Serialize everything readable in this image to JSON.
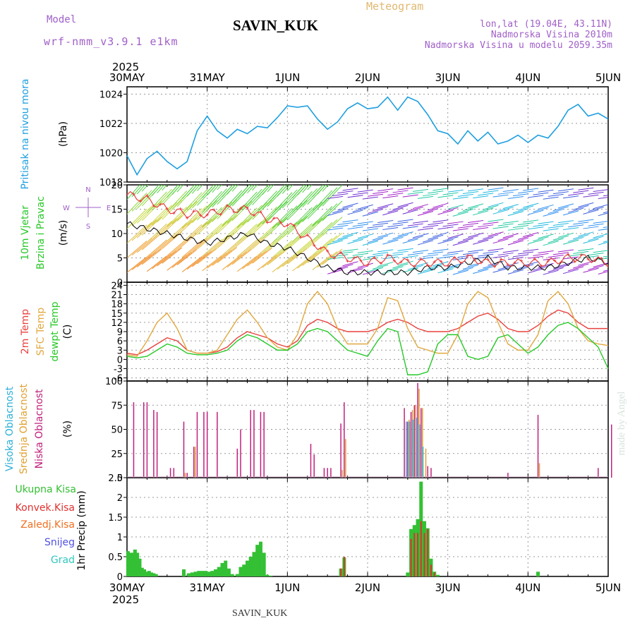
{
  "header": {
    "title": "SAVIN_KUK",
    "meteogram": "Meteogram",
    "model_label": "Model",
    "model_name": "wrf-nmm_v3.9.1 e1km",
    "lonlat": "lon,lat (19.04E, 43.11N)",
    "elev": "Nadmorska Visina 2010m",
    "elev_model": "Nadmorska Visina u modelu 2059.35m",
    "footer": "SAVIN_KUK",
    "credit": "made by Angel"
  },
  "colors": {
    "pressure": "#1e9fe0",
    "temp": "#e8403c",
    "sfc": "#e0a840",
    "dew": "#28c828",
    "high_cloud": "#2ab0d8",
    "mid_cloud": "#e0a030",
    "low_cloud": "#c0207c",
    "total": "#34c034",
    "conv": "#e03030",
    "frozen": "#f07020",
    "snow": "#5050e0",
    "graupel": "#30c8c0"
  },
  "chart_data": [
    {
      "type": "line",
      "panel": "pressure",
      "ylabels": [
        "Pritisak na nivou mora",
        "(hPa)"
      ],
      "ylim": [
        1018,
        1024.5
      ],
      "yticks": [
        1018,
        1020,
        1022,
        1024
      ],
      "x_start": "2025-05-30T00:00",
      "x_ticks": [
        "30MAY",
        "31MAY",
        "1JUN",
        "2JUN",
        "3JUN",
        "4JUN",
        "5JUN"
      ],
      "x_year": "2025",
      "hours": [
        0,
        3,
        6,
        9,
        12,
        15,
        18,
        21,
        24,
        27,
        30,
        33,
        36,
        39,
        42,
        45,
        48,
        51,
        54,
        57,
        60,
        63,
        66,
        69,
        72,
        75,
        78,
        81,
        84,
        87,
        90,
        93,
        96,
        99,
        102,
        105,
        108,
        111,
        114,
        117,
        120,
        123,
        126,
        129,
        132,
        135,
        138,
        141,
        144
      ],
      "values": [
        1019.8,
        1018.5,
        1019.6,
        1020.1,
        1019.4,
        1018.9,
        1019.4,
        1021.5,
        1022.5,
        1021.5,
        1021.0,
        1021.6,
        1021.3,
        1021.8,
        1021.7,
        1022.4,
        1023.2,
        1023.1,
        1023.2,
        1022.3,
        1021.6,
        1022.1,
        1023.0,
        1023.4,
        1023.0,
        1023.1,
        1023.8,
        1022.9,
        1023.8,
        1023.5,
        1022.6,
        1021.5,
        1021.3,
        1020.6,
        1021.5,
        1020.8,
        1021.4,
        1020.6,
        1020.8,
        1021.2,
        1020.7,
        1021.2,
        1021.0,
        1021.8,
        1022.9,
        1023.3,
        1022.5,
        1022.7,
        1022.3
      ],
      "series": [
        {
          "name": "",
          "values_ref": "values"
        }
      ]
    },
    {
      "type": "line",
      "panel": "wind",
      "ylabels": [
        "10m Vjetar",
        "Brzina i Pravac",
        "(m/s)"
      ],
      "compass": [
        "N",
        "W",
        "E",
        "S"
      ],
      "ylim": [
        0,
        20
      ],
      "yticks": [
        0,
        5,
        10,
        15,
        20
      ],
      "hours": [
        0,
        6,
        12,
        18,
        24,
        30,
        36,
        42,
        48,
        54,
        60,
        66,
        72,
        78,
        84,
        90,
        96,
        102,
        108,
        114,
        120,
        126,
        132,
        138,
        144
      ],
      "speed_mean": [
        12,
        11,
        10,
        9,
        8,
        9,
        10,
        8,
        7,
        5,
        3,
        2,
        2,
        2,
        2,
        3,
        3,
        4,
        5,
        3,
        3,
        3,
        4,
        5,
        4
      ],
      "speed_gust": [
        18,
        17,
        15,
        14,
        14,
        15,
        15,
        13,
        12,
        9,
        6,
        5,
        4,
        5,
        4,
        4,
        4,
        5,
        4,
        4,
        4,
        4,
        5,
        5,
        4
      ]
    },
    {
      "type": "line",
      "panel": "temperature",
      "ylabels": [
        "2m Temp",
        "SFC Temp",
        "dewpt Temp",
        "(C)"
      ],
      "ylim": [
        -7,
        25
      ],
      "yticks": [
        -6,
        -3,
        0,
        3,
        6,
        9,
        12,
        15,
        18,
        21,
        24
      ],
      "hours": [
        0,
        3,
        6,
        9,
        12,
        15,
        18,
        21,
        24,
        27,
        30,
        33,
        36,
        39,
        42,
        45,
        48,
        51,
        54,
        57,
        60,
        63,
        66,
        69,
        72,
        75,
        78,
        81,
        84,
        87,
        90,
        93,
        96,
        99,
        102,
        105,
        108,
        111,
        114,
        117,
        120,
        123,
        126,
        129,
        132,
        135,
        138,
        141,
        144
      ],
      "series": [
        {
          "name": "2m Temp",
          "values": [
            2,
            1.5,
            3,
            5,
            7,
            6,
            3,
            2,
            2,
            2.5,
            4,
            7,
            9,
            8,
            7,
            5,
            4,
            6,
            11,
            13,
            12,
            10,
            9,
            9,
            9,
            10,
            12,
            13,
            12,
            10,
            9,
            9,
            9,
            10,
            12,
            14,
            15,
            13,
            10,
            9,
            9,
            11,
            14,
            16,
            15,
            12,
            10,
            10,
            10
          ]
        },
        {
          "name": "SFC Temp",
          "values": [
            1.5,
            1,
            6,
            12,
            15,
            10,
            3,
            2,
            2,
            3,
            8,
            13,
            16,
            12,
            7,
            4,
            3,
            8,
            18,
            22,
            18,
            10,
            5,
            5,
            5,
            10,
            20,
            19,
            10,
            4,
            3,
            2,
            2,
            8,
            18,
            22,
            20,
            12,
            5,
            3,
            3,
            8,
            19,
            22,
            18,
            10,
            6,
            5,
            4.5
          ]
        },
        {
          "name": "dewpt Temp",
          "values": [
            1,
            0.5,
            1,
            3,
            5,
            4,
            2,
            1.5,
            1.5,
            2,
            3,
            6,
            8,
            7,
            5,
            3,
            3,
            5,
            9,
            10,
            9,
            6,
            3,
            2,
            1,
            6,
            10,
            9,
            -5,
            -5,
            -4,
            5,
            8,
            8,
            1,
            0,
            1,
            7,
            8,
            5,
            2,
            4,
            8,
            11,
            12,
            10,
            7,
            4,
            -3
          ]
        }
      ]
    },
    {
      "type": "bar",
      "panel": "cloud",
      "ylabels": [
        "Visoka Oblacnost",
        "Srednja Oblacnost",
        "Niska Oblacnost",
        "(%)"
      ],
      "ylim": [
        0,
        100
      ],
      "yticks": [
        0,
        25,
        50,
        75,
        100
      ],
      "series": [
        {
          "name": "Niska Oblacnost",
          "points": [
            [
              2,
              78
            ],
            [
              5,
              78
            ],
            [
              6,
              78
            ],
            [
              8,
              70
            ],
            [
              9,
              68
            ],
            [
              13,
              10
            ],
            [
              14,
              10
            ],
            [
              17,
              58
            ],
            [
              18,
              5
            ],
            [
              20,
              32
            ],
            [
              21,
              68
            ],
            [
              23,
              68
            ],
            [
              24,
              68
            ],
            [
              27,
              68
            ],
            [
              33,
              30
            ],
            [
              34,
              50
            ],
            [
              37,
              70
            ],
            [
              38,
              70
            ],
            [
              40,
              68
            ],
            [
              41,
              68
            ],
            [
              55,
              35
            ],
            [
              56,
              24
            ],
            [
              59,
              10
            ],
            [
              60,
              10
            ],
            [
              61,
              10
            ],
            [
              64,
              56
            ],
            [
              65,
              78
            ],
            [
              83,
              72
            ],
            [
              84,
              58
            ],
            [
              85,
              68
            ],
            [
              86,
              75
            ],
            [
              87,
              98
            ],
            [
              88,
              72
            ],
            [
              90,
              12
            ],
            [
              91,
              10
            ],
            [
              114,
              5
            ],
            [
              123,
              65
            ],
            [
              141,
              10
            ],
            [
              145,
              55
            ]
          ]
        },
        {
          "name": "Srednja Oblacnost",
          "points": [
            [
              17,
              5
            ],
            [
              20,
              32
            ],
            [
              64,
              8
            ],
            [
              65,
              40
            ],
            [
              84,
              60
            ],
            [
              85,
              70
            ],
            [
              86,
              75
            ],
            [
              87,
              92
            ],
            [
              88,
              72
            ],
            [
              89,
              30
            ],
            [
              123,
              15
            ]
          ]
        },
        {
          "name": "Visoka Oblacnost",
          "points": [
            [
              84,
              58
            ],
            [
              85,
              58
            ],
            [
              86,
              60
            ],
            [
              87,
              62
            ],
            [
              88,
              55
            ],
            [
              89,
              32
            ]
          ]
        }
      ]
    },
    {
      "type": "bar",
      "panel": "precipitation",
      "ylabels": [
        "1hr Precip (mm)"
      ],
      "legend": [
        "Ukupna Kisa",
        "Konvek.Kisa",
        "Zaledj.Kisa",
        "Snijeg",
        "Grad"
      ],
      "ylim": [
        0,
        2.5
      ],
      "yticks": [
        0,
        0.5,
        1,
        1.5,
        2,
        2.5
      ],
      "series": [
        {
          "name": "Ukupna Kisa",
          "points": [
            [
              0.3,
              0.64
            ],
            [
              1,
              0.6
            ],
            [
              1.7,
              0.6
            ],
            [
              2.4,
              0.68
            ],
            [
              3.1,
              0.6
            ],
            [
              3.8,
              0.45
            ],
            [
              4.5,
              0.22
            ],
            [
              5.2,
              0.18
            ],
            [
              5.9,
              0.12
            ],
            [
              6.6,
              0.14
            ],
            [
              7.3,
              0.1
            ],
            [
              8,
              0.08
            ],
            [
              8.7,
              0.06
            ],
            [
              17,
              0.18
            ],
            [
              18.5,
              0.08
            ],
            [
              19.5,
              0.1
            ],
            [
              20.5,
              0.12
            ],
            [
              21.5,
              0.14
            ],
            [
              22.5,
              0.14
            ],
            [
              23.5,
              0.14
            ],
            [
              24.5,
              0.12
            ],
            [
              25.5,
              0.14
            ],
            [
              26.5,
              0.18
            ],
            [
              27.5,
              0.24
            ],
            [
              28.5,
              0.34
            ],
            [
              29.5,
              0.4
            ],
            [
              30.5,
              0.2
            ],
            [
              31.5,
              0.06
            ],
            [
              33,
              0.06
            ],
            [
              34,
              0.24
            ],
            [
              35,
              0.3
            ],
            [
              36,
              0.4
            ],
            [
              37,
              0.5
            ],
            [
              38,
              0.62
            ],
            [
              39,
              0.8
            ],
            [
              40,
              0.88
            ],
            [
              41,
              0.6
            ],
            [
              42,
              0.04
            ],
            [
              43,
              0.02
            ],
            [
              64,
              0.2
            ],
            [
              65,
              0.48
            ],
            [
              84,
              0.1
            ],
            [
              85,
              1.2
            ],
            [
              86,
              1.3
            ],
            [
              87,
              1.45
            ],
            [
              88,
              2.4
            ],
            [
              89,
              1.4
            ],
            [
              90,
              1.22
            ],
            [
              91,
              0.45
            ],
            [
              92,
              0.12
            ],
            [
              93,
              0.04
            ],
            [
              123,
              0.12
            ]
          ]
        },
        {
          "name": "Konvek.Kisa",
          "points": [
            [
              64,
              0.2
            ],
            [
              65,
              0.5
            ],
            [
              85,
              0.95
            ],
            [
              86,
              1.1
            ],
            [
              87,
              1.1
            ],
            [
              88,
              1.4
            ],
            [
              89,
              1.1
            ],
            [
              90,
              1.2
            ],
            [
              91,
              0.3
            ],
            [
              92,
              0.1
            ]
          ]
        }
      ]
    }
  ]
}
